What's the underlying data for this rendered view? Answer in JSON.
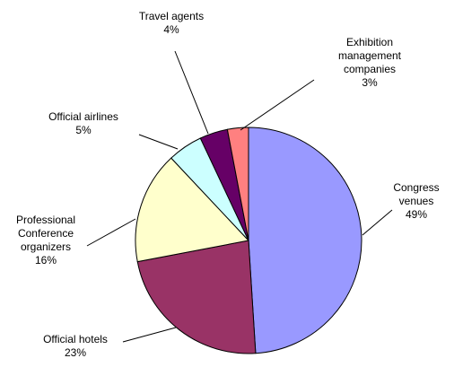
{
  "chart_data": {
    "type": "pie",
    "title": "",
    "start_angle_deg": 0,
    "direction": "clockwise",
    "slices": [
      {
        "label_lines": [
          "Congress",
          "venues"
        ],
        "value": 49,
        "value_label": "49%",
        "color": "#9999FF"
      },
      {
        "label_lines": [
          "Official hotels"
        ],
        "value": 23,
        "value_label": "23%",
        "color": "#993366"
      },
      {
        "label_lines": [
          "Professional",
          "Conference",
          "organizers"
        ],
        "value": 16,
        "value_label": "16%",
        "color": "#FFFFCC"
      },
      {
        "label_lines": [
          "Official airlines"
        ],
        "value": 5,
        "value_label": "5%",
        "color": "#CCFFFF"
      },
      {
        "label_lines": [
          "Travel agents"
        ],
        "value": 4,
        "value_label": "4%",
        "color": "#660066"
      },
      {
        "label_lines": [
          "Exhibition",
          "management",
          "companies"
        ],
        "value": 3,
        "value_label": "3%",
        "color": "#FF8080"
      }
    ]
  }
}
